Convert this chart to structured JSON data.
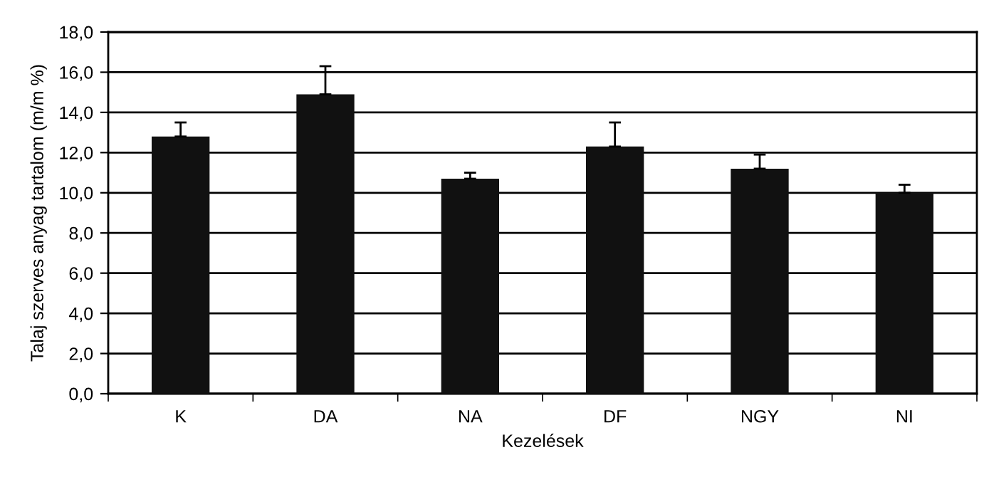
{
  "chart_data": {
    "type": "bar",
    "xlabel": "Kezelések",
    "ylabel": "Talaj szerves anyag tartalom (m/m %)",
    "categories": [
      "K",
      "DA",
      "NA",
      "DF",
      "NGY",
      "NI"
    ],
    "values": [
      12.8,
      14.9,
      10.7,
      12.3,
      11.2,
      10.0
    ],
    "errors": [
      [
        12.8,
        13.5
      ],
      [
        14.9,
        16.3
      ],
      [
        10.7,
        11.0
      ],
      [
        12.3,
        13.5
      ],
      [
        11.2,
        11.9
      ],
      [
        10.0,
        10.4
      ]
    ],
    "color": "#111111",
    "ylim": [
      0,
      18
    ],
    "yticks": [
      {
        "value": 0,
        "label": "0,0"
      },
      {
        "value": 2,
        "label": "2,0"
      },
      {
        "value": 4,
        "label": "4,0"
      },
      {
        "value": 6,
        "label": "6,0"
      },
      {
        "value": 8,
        "label": "8,0"
      },
      {
        "value": 10,
        "label": "10,0"
      },
      {
        "value": 12,
        "label": "12,0"
      },
      {
        "value": 14,
        "label": "14,0"
      },
      {
        "value": 16,
        "label": "16,0"
      },
      {
        "value": 18,
        "label": "18,0"
      }
    ],
    "grid": "y",
    "legend": false
  }
}
